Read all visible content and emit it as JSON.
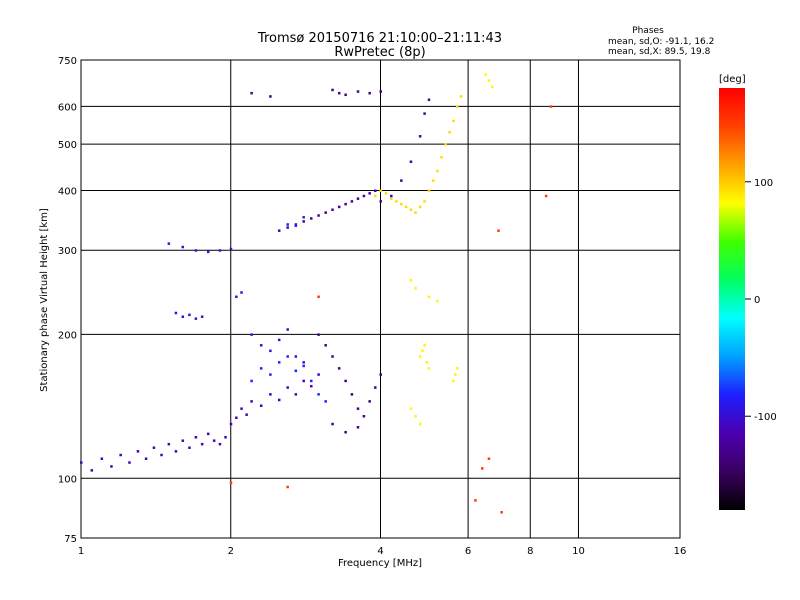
{
  "chart_data": {
    "type": "scatter",
    "title": "Tromsø 20150716 21:10:00–21:11:43",
    "subtitle": "RwPretec (8p)",
    "xlabel": "Frequency [MHz]",
    "ylabel": "Stationary phase Virtual Height [km]",
    "x_scale": "log",
    "y_scale": "log",
    "xlim": [
      1,
      16
    ],
    "ylim": [
      75,
      750
    ],
    "x_ticks": [
      1,
      2,
      4,
      6,
      8,
      10,
      16
    ],
    "y_ticks": [
      75,
      100,
      200,
      300,
      400,
      500,
      600,
      750
    ],
    "grid": true,
    "colorbar": {
      "unit": "[deg]",
      "range": [
        -180,
        180
      ],
      "tick_labels": [
        "100",
        "0",
        "-100"
      ],
      "tick_values": [
        100,
        0,
        -100
      ],
      "colormap": [
        "#000000",
        "#3a0060",
        "#4b00b0",
        "#1e1eff",
        "#00a0ff",
        "#00ffff",
        "#00ff60",
        "#40ff00",
        "#ffff00",
        "#ffa000",
        "#ff4000",
        "#ff0000"
      ]
    },
    "info": {
      "heading": "Phases",
      "line_o": "mean, sd,O: -91.1, 16.2",
      "line_x": "mean, sd,X:  89.5, 19.8"
    },
    "series": [
      {
        "phase": -110,
        "points": [
          [
            1.0,
            108
          ],
          [
            1.05,
            104
          ],
          [
            1.1,
            110
          ],
          [
            1.15,
            106
          ],
          [
            1.2,
            112
          ],
          [
            1.25,
            108
          ],
          [
            1.3,
            114
          ],
          [
            1.35,
            110
          ],
          [
            1.4,
            116
          ],
          [
            1.45,
            112
          ],
          [
            1.5,
            118
          ],
          [
            1.55,
            114
          ],
          [
            1.6,
            120
          ],
          [
            1.65,
            116
          ],
          [
            1.7,
            122
          ],
          [
            1.75,
            118
          ],
          [
            1.8,
            124
          ],
          [
            1.85,
            120
          ],
          [
            1.9,
            118
          ],
          [
            1.95,
            122
          ],
          [
            2.0,
            130
          ],
          [
            2.05,
            134
          ],
          [
            2.1,
            140
          ],
          [
            2.15,
            136
          ],
          [
            2.2,
            145
          ],
          [
            2.3,
            142
          ],
          [
            2.4,
            150
          ],
          [
            2.5,
            146
          ],
          [
            2.6,
            155
          ],
          [
            2.7,
            150
          ],
          [
            2.8,
            160
          ],
          [
            2.9,
            156
          ],
          [
            3.0,
            165
          ]
        ]
      },
      {
        "phase": -95,
        "points": [
          [
            1.55,
            222
          ],
          [
            1.6,
            218
          ],
          [
            1.65,
            220
          ],
          [
            1.7,
            216
          ],
          [
            1.75,
            218
          ],
          [
            2.05,
            240
          ],
          [
            2.1,
            245
          ],
          [
            2.2,
            200
          ],
          [
            2.3,
            190
          ],
          [
            2.4,
            185
          ],
          [
            2.5,
            195
          ],
          [
            2.6,
            205
          ],
          [
            2.7,
            180
          ],
          [
            2.8,
            175
          ],
          [
            1.5,
            310
          ],
          [
            1.6,
            305
          ],
          [
            1.7,
            300
          ],
          [
            1.8,
            298
          ],
          [
            1.9,
            300
          ],
          [
            2.0,
            302
          ]
        ]
      },
      {
        "phase": -120,
        "points": [
          [
            2.5,
            330
          ],
          [
            2.6,
            335
          ],
          [
            2.7,
            340
          ],
          [
            2.8,
            345
          ],
          [
            2.9,
            350
          ],
          [
            3.0,
            355
          ],
          [
            3.1,
            360
          ],
          [
            3.2,
            365
          ],
          [
            3.3,
            370
          ],
          [
            3.4,
            375
          ],
          [
            3.5,
            380
          ],
          [
            3.6,
            385
          ],
          [
            3.7,
            390
          ],
          [
            3.8,
            395
          ],
          [
            3.9,
            400
          ],
          [
            4.0,
            380
          ],
          [
            4.2,
            390
          ],
          [
            4.4,
            420
          ],
          [
            4.6,
            460
          ],
          [
            4.8,
            520
          ],
          [
            4.9,
            580
          ],
          [
            5.0,
            620
          ]
        ]
      },
      {
        "phase": -130,
        "points": [
          [
            3.0,
            200
          ],
          [
            3.1,
            190
          ],
          [
            3.2,
            180
          ],
          [
            3.3,
            170
          ],
          [
            3.4,
            160
          ],
          [
            3.5,
            150
          ],
          [
            3.6,
            140
          ],
          [
            3.7,
            135
          ],
          [
            3.8,
            145
          ],
          [
            3.9,
            155
          ],
          [
            4.0,
            165
          ],
          [
            3.2,
            130
          ],
          [
            3.4,
            125
          ],
          [
            3.6,
            128
          ],
          [
            2.2,
            640
          ],
          [
            2.4,
            630
          ],
          [
            3.2,
            650
          ],
          [
            3.3,
            640
          ],
          [
            3.4,
            635
          ],
          [
            3.6,
            645
          ],
          [
            3.8,
            640
          ],
          [
            4.0,
            645
          ]
        ]
      },
      {
        "phase": -80,
        "points": [
          [
            2.6,
            340
          ],
          [
            2.7,
            338
          ],
          [
            2.8,
            352
          ],
          [
            2.2,
            160
          ],
          [
            2.3,
            170
          ],
          [
            2.4,
            165
          ],
          [
            2.5,
            175
          ],
          [
            2.6,
            180
          ],
          [
            2.7,
            168
          ],
          [
            2.8,
            172
          ],
          [
            2.9,
            160
          ],
          [
            3.0,
            150
          ],
          [
            3.1,
            145
          ]
        ]
      },
      {
        "phase": 95,
        "points": [
          [
            3.9,
            390
          ],
          [
            4.0,
            400
          ],
          [
            4.1,
            395
          ],
          [
            4.2,
            385
          ],
          [
            4.3,
            380
          ],
          [
            4.4,
            375
          ],
          [
            4.5,
            370
          ],
          [
            4.6,
            365
          ],
          [
            4.7,
            360
          ],
          [
            4.8,
            370
          ],
          [
            4.9,
            380
          ],
          [
            5.0,
            400
          ],
          [
            5.1,
            420
          ],
          [
            5.2,
            440
          ],
          [
            5.3,
            470
          ],
          [
            5.4,
            500
          ],
          [
            5.5,
            530
          ],
          [
            5.6,
            560
          ],
          [
            5.7,
            600
          ],
          [
            5.8,
            630
          ]
        ]
      },
      {
        "phase": 85,
        "points": [
          [
            4.8,
            180
          ],
          [
            4.85,
            185
          ],
          [
            4.9,
            190
          ],
          [
            4.95,
            175
          ],
          [
            5.0,
            170
          ],
          [
            4.6,
            140
          ],
          [
            4.7,
            135
          ],
          [
            4.8,
            130
          ],
          [
            5.6,
            160
          ],
          [
            5.65,
            165
          ],
          [
            5.7,
            170
          ],
          [
            4.6,
            260
          ],
          [
            4.7,
            250
          ],
          [
            5.0,
            240
          ],
          [
            5.2,
            235
          ],
          [
            6.5,
            700
          ],
          [
            6.6,
            680
          ],
          [
            6.7,
            660
          ]
        ]
      },
      {
        "phase": 150,
        "points": [
          [
            2.0,
            98
          ],
          [
            2.6,
            96
          ],
          [
            6.2,
            90
          ],
          [
            7.0,
            85
          ],
          [
            6.6,
            110
          ],
          [
            6.4,
            105
          ],
          [
            6.9,
            330
          ],
          [
            8.6,
            390
          ],
          [
            8.8,
            600
          ],
          [
            3.0,
            240
          ]
        ]
      }
    ]
  }
}
